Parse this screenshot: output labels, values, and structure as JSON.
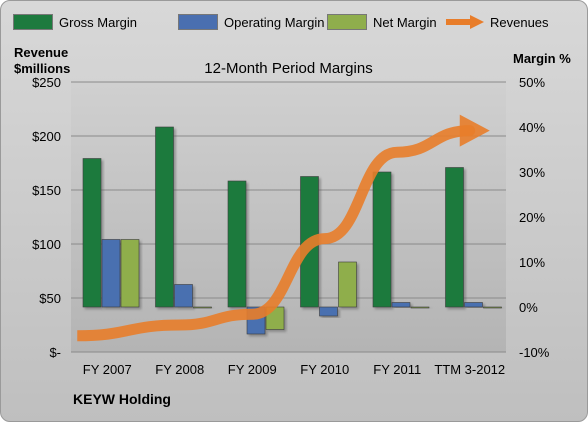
{
  "legend": [
    {
      "name": "Gross Margin",
      "color": "#1d7a3e",
      "kind": "bar"
    },
    {
      "name": "Operating Margin",
      "color": "#4a6fb0",
      "kind": "bar"
    },
    {
      "name": "Net Margin",
      "color": "#8fae4c",
      "kind": "bar"
    },
    {
      "name": "Revenues",
      "color": "#e87d2a",
      "kind": "arrow"
    }
  ],
  "left_axis_title_line1": "Revenue",
  "left_axis_title_line2": "$millions",
  "right_axis_title": "Margin %",
  "footer": "KEYW Holding",
  "chart_data": {
    "type": "bar",
    "title": "12-Month Period Margins",
    "categories": [
      "FY 2007",
      "FY 2008",
      "FY 2009",
      "FY 2010",
      "FY 2011",
      "TTM 3-2012"
    ],
    "series": [
      {
        "name": "Gross Margin",
        "axis": "right",
        "values": [
          33,
          40,
          28,
          29,
          30,
          31
        ],
        "color": "#1d7a3e"
      },
      {
        "name": "Operating Margin",
        "axis": "right",
        "values": [
          15,
          5,
          -6,
          -2,
          1,
          1
        ],
        "color": "#4a6fb0"
      },
      {
        "name": "Net Margin",
        "axis": "right",
        "values": [
          15,
          0,
          -5,
          10,
          0,
          0
        ],
        "color": "#8fae4c"
      },
      {
        "name": "Revenues",
        "axis": "left",
        "type": "line",
        "values": [
          15,
          25,
          35,
          105,
          185,
          205
        ],
        "color": "#e87d2a"
      }
    ],
    "left_axis": {
      "ticks": [
        "$-",
        "$50",
        "$100",
        "$150",
        "$200",
        "$250"
      ],
      "ylim": [
        0,
        250
      ]
    },
    "right_axis": {
      "ticks": [
        "-10%",
        "0%",
        "10%",
        "20%",
        "30%",
        "40%",
        "50%"
      ],
      "ylim": [
        -10,
        50
      ]
    },
    "grid": true,
    "legend_position": "top"
  }
}
